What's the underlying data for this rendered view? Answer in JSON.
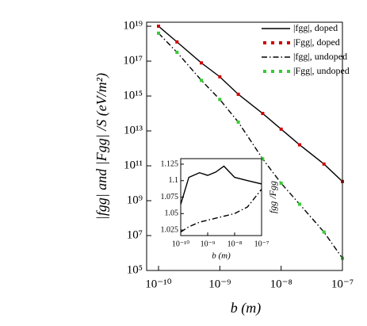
{
  "chart_data": [
    {
      "type": "line",
      "ylabel": "|fgg| and |Fgg| /S (eV/m²)",
      "xlabel": "b (m)",
      "xscale": "log",
      "yscale": "log",
      "xlim": [
        6.4e-11,
        1e-07
      ],
      "ylim": [
        100000.0,
        1.7e+19
      ],
      "xticks": [
        {
          "value": 1e-10,
          "label": "10⁻¹⁰"
        },
        {
          "value": 1e-09,
          "label": "10⁻⁹"
        },
        {
          "value": 1e-08,
          "label": "10⁻⁸"
        },
        {
          "value": 1e-07,
          "label": "10⁻⁷"
        }
      ],
      "yticks": [
        {
          "value": 100000.0,
          "label": "10⁵"
        },
        {
          "value": 10000000.0,
          "label": "10⁷"
        },
        {
          "value": 1000000000.0,
          "label": "10⁹"
        },
        {
          "value": 100000000000.0,
          "label": "10¹¹"
        },
        {
          "value": 10000000000000.0,
          "label": "10¹³"
        },
        {
          "value": 1000000000000000.0,
          "label": "10¹⁵"
        },
        {
          "value": 1e+17,
          "label": "10¹⁷"
        },
        {
          "value": 1e+19,
          "label": "10¹⁹"
        }
      ],
      "legend": "upper right",
      "x": [
        1e-10,
        2e-10,
        5e-10,
        1e-09,
        2e-09,
        5e-09,
        1e-08,
        2e-08,
        5e-08,
        1e-07
      ],
      "series": [
        {
          "name": "|fgg|, doped",
          "color": "#000000",
          "style": "solid",
          "values": [
            1e+19,
            1.26e+18,
            7.9e+16,
            1.26e+16,
            1260000000000000.0,
            100000000000000.0,
            12600000000000.0,
            1600000000000.0,
            126000000000.0,
            12600000000.0
          ]
        },
        {
          "name": "|Fgg|, doped",
          "color": "#cc0000",
          "style": "dots",
          "values": [
            1e+19,
            1.26e+18,
            7.9e+16,
            1.26e+16,
            1260000000000000.0,
            100000000000000.0,
            12600000000000.0,
            1600000000000.0,
            126000000000.0,
            12600000000.0
          ]
        },
        {
          "name": "|fgg|, undoped",
          "color": "#000000",
          "style": "dashdot",
          "values": [
            4e+18,
            3.2e+17,
            7900000000000000.0,
            630000000000000.0,
            32000000000000.0,
            250000000000.0,
            10000000000.0,
            630000000.0,
            16000000.0,
            500000.0
          ]
        },
        {
          "name": "|Fgg|, undoped",
          "color": "#33cc33",
          "style": "dots",
          "values": [
            4e+18,
            3.2e+17,
            7900000000000000.0,
            630000000000000.0,
            32000000000000.0,
            250000000000.0,
            10000000000.0,
            630000000.0,
            16000000.0,
            500000.0
          ]
        }
      ]
    },
    {
      "type": "line",
      "ylabel": "fgg /Fgg",
      "xlabel": "b (m)",
      "xscale": "log",
      "xlim": [
        1e-10,
        1e-07
      ],
      "ylim": [
        1.0166,
        1.1334
      ],
      "xticks": [
        {
          "value": 1e-10,
          "label": "10⁻¹⁰"
        },
        {
          "value": 1e-09,
          "label": "10⁻⁹"
        },
        {
          "value": 1e-08,
          "label": "10⁻⁸"
        },
        {
          "value": 1e-07,
          "label": "10⁻⁷"
        }
      ],
      "yticks": [
        1.025,
        1.05,
        1.075,
        1.1,
        1.125
      ],
      "x": [
        1e-10,
        2e-10,
        5e-10,
        1e-09,
        2e-09,
        4e-09,
        1e-08,
        3e-08,
        1e-07
      ],
      "series": [
        {
          "color": "#000000",
          "style": "solid",
          "values": [
            1.064,
            1.105,
            1.112,
            1.108,
            1.113,
            1.122,
            1.105,
            1.1,
            1.095
          ]
        },
        {
          "color": "#000000",
          "style": "dashdot",
          "values": [
            1.022,
            1.03,
            1.037,
            1.04,
            1.043,
            1.046,
            1.05,
            1.06,
            1.087
          ]
        }
      ]
    }
  ]
}
